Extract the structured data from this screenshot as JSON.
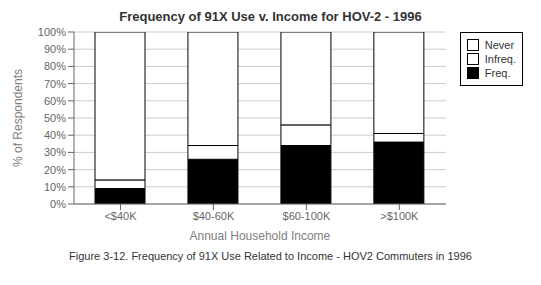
{
  "chart_data": {
    "type": "bar",
    "title": "Frequency of 91X Use v. Income for HOV-2 - 1996",
    "xlabel": "Annual Household Income",
    "ylabel": "% of Respondents",
    "caption": "Figure 3-12. Frequency of 91X Use Related to Income - HOV2 Commuters in 1996",
    "categories": [
      "<$40K",
      "$40-60K",
      "$60-100K",
      ">$100K"
    ],
    "series": [
      {
        "name": "Freq.",
        "color": "#000000",
        "values": [
          9,
          26,
          34,
          36
        ]
      },
      {
        "name": "Infreq.",
        "color": "#ffffff",
        "values": [
          5,
          8,
          12,
          5
        ]
      },
      {
        "name": "Never",
        "color": "#ffffff",
        "values": [
          86,
          66,
          54,
          59
        ]
      }
    ],
    "stacked": true,
    "ylim": [
      0,
      100
    ],
    "yticks": [
      {
        "value": 0,
        "label": "0%"
      },
      {
        "value": 10,
        "label": "10%"
      },
      {
        "value": 20,
        "label": "20%"
      },
      {
        "value": 30,
        "label": "30%"
      },
      {
        "value": 40,
        "label": "40%"
      },
      {
        "value": 50,
        "label": "50%"
      },
      {
        "value": 60,
        "label": "60%"
      },
      {
        "value": 70,
        "label": "70%"
      },
      {
        "value": 80,
        "label": "80%"
      },
      {
        "value": 90,
        "label": "90%"
      },
      {
        "value": 100,
        "label": "100%"
      }
    ],
    "grid": true,
    "legend": "right"
  }
}
